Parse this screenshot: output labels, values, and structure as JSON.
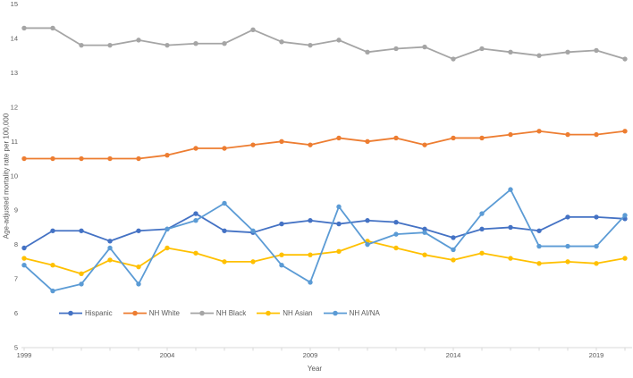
{
  "figure": {
    "y_axis_title": "Age-adjusted mortality rate per 100,000",
    "x_axis_title": "Year"
  },
  "chart_data": {
    "type": "line",
    "title": "",
    "xlabel": "Year",
    "ylabel": "Age-adjusted mortality rate per 100,000",
    "x": [
      1999,
      2000,
      2001,
      2002,
      2003,
      2004,
      2005,
      2006,
      2007,
      2008,
      2009,
      2010,
      2011,
      2012,
      2013,
      2014,
      2015,
      2016,
      2017,
      2018,
      2019,
      2020
    ],
    "x_tick_labels": [
      "1999",
      "2004",
      "2009",
      "2014",
      "2019"
    ],
    "ylim": [
      5,
      15
    ],
    "y_ticks": [
      "5",
      "6",
      "7",
      "8",
      "9",
      "10",
      "11",
      "12",
      "13",
      "14",
      "15"
    ],
    "grid": false,
    "legend_position": "bottom-left",
    "marker": "circle",
    "series": [
      {
        "name": "Hispanic",
        "color": "#4472C4",
        "values": [
          7.9,
          8.4,
          8.4,
          8.1,
          8.4,
          8.45,
          8.9,
          8.4,
          8.35,
          8.6,
          8.7,
          8.6,
          8.7,
          8.65,
          8.45,
          8.2,
          8.45,
          8.5,
          8.4,
          8.8,
          8.8,
          8.75
        ]
      },
      {
        "name": "NH White",
        "color": "#ED7D31",
        "values": [
          10.5,
          10.5,
          10.5,
          10.5,
          10.5,
          10.6,
          10.8,
          10.8,
          10.9,
          11.0,
          10.9,
          11.1,
          11.0,
          11.1,
          10.9,
          11.1,
          11.1,
          11.2,
          11.3,
          11.2,
          11.2,
          11.3
        ]
      },
      {
        "name": "NH Black",
        "color": "#A5A5A5",
        "values": [
          14.3,
          14.3,
          13.8,
          13.8,
          13.95,
          13.8,
          13.85,
          13.85,
          14.25,
          13.9,
          13.8,
          13.95,
          13.6,
          13.7,
          13.75,
          13.4,
          13.7,
          13.6,
          13.5,
          13.6,
          13.65,
          13.4
        ]
      },
      {
        "name": "NH Asian",
        "color": "#FFC000",
        "values": [
          7.6,
          7.4,
          7.15,
          7.55,
          7.35,
          7.9,
          7.75,
          7.5,
          7.5,
          7.7,
          7.7,
          7.8,
          8.1,
          7.9,
          7.7,
          7.55,
          7.75,
          7.6,
          7.45,
          7.5,
          7.45,
          7.6
        ]
      },
      {
        "name": "NH AI/NA",
        "color": "#5B9BD5",
        "values": [
          7.4,
          6.65,
          6.85,
          7.9,
          6.85,
          8.45,
          8.7,
          9.2,
          8.4,
          7.4,
          6.9,
          9.1,
          8.0,
          8.3,
          8.35,
          7.85,
          8.9,
          9.6,
          7.95,
          7.95,
          7.95,
          8.85
        ]
      }
    ],
    "axis_color": "#d9d9d9",
    "text_color": "#595959"
  }
}
